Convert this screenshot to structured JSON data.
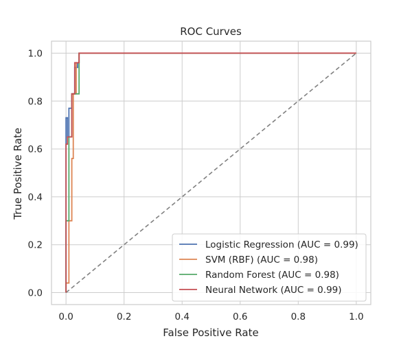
{
  "chart_data": {
    "type": "line",
    "title": "ROC Curves",
    "xlabel": "False Positive Rate",
    "ylabel": "True Positive Rate",
    "xlim": [
      -0.05,
      1.05
    ],
    "ylim": [
      -0.05,
      1.05
    ],
    "xticks": [
      0.0,
      0.2,
      0.4,
      0.6,
      0.8,
      1.0
    ],
    "yticks": [
      0.0,
      0.2,
      0.4,
      0.6,
      0.8,
      1.0
    ],
    "xtick_labels": [
      "0.0",
      "0.2",
      "0.4",
      "0.6",
      "0.8",
      "1.0"
    ],
    "ytick_labels": [
      "0.0",
      "0.2",
      "0.4",
      "0.6",
      "0.8",
      "1.0"
    ],
    "grid": true,
    "legend_position": "lower-right",
    "series": [
      {
        "name": "Logistic Regression (AUC = 0.99)",
        "color": "#4c72b0",
        "x": [
          0,
          0,
          0.005,
          0.005,
          0.01,
          0.01,
          0.02,
          0.02,
          0.03,
          0.03,
          0.04,
          0.04,
          0.045,
          0.045,
          1.0
        ],
        "y": [
          0,
          0.73,
          0.73,
          0.65,
          0.65,
          0.77,
          0.77,
          0.83,
          0.83,
          0.94,
          0.94,
          0.96,
          0.96,
          1.0,
          1.0
        ]
      },
      {
        "name": "SVM (RBF) (AUC = 0.98)",
        "color": "#dd8452",
        "x": [
          0,
          0,
          0.01,
          0.01,
          0.02,
          0.02,
          0.025,
          0.025,
          0.03,
          0.03,
          0.035,
          0.035,
          0.045,
          0.045,
          1.0
        ],
        "y": [
          0,
          0.04,
          0.04,
          0.3,
          0.3,
          0.56,
          0.56,
          0.83,
          0.83,
          0.83,
          0.83,
          0.96,
          0.96,
          1.0,
          1.0
        ]
      },
      {
        "name": "Random Forest (AUC = 0.98)",
        "color": "#55a868",
        "x": [
          0,
          0,
          0.01,
          0.01,
          0.02,
          0.02,
          0.035,
          0.035,
          0.045,
          0.045,
          1.0
        ],
        "y": [
          0,
          0.3,
          0.3,
          0.65,
          0.65,
          0.83,
          0.83,
          0.83,
          0.83,
          1.0,
          1.0
        ]
      },
      {
        "name": "Neural Network (AUC = 0.99)",
        "color": "#c44e52",
        "x": [
          0,
          0,
          0.005,
          0.005,
          0.015,
          0.015,
          0.02,
          0.02,
          0.03,
          0.03,
          0.035,
          0.035,
          0.045,
          0.045,
          1.0
        ],
        "y": [
          0,
          0.62,
          0.62,
          0.65,
          0.65,
          0.65,
          0.65,
          0.83,
          0.83,
          0.96,
          0.96,
          0.96,
          0.96,
          1.0,
          1.0
        ]
      },
      {
        "color": "#808080",
        "dashed": true,
        "x": [
          0,
          1
        ],
        "y": [
          0,
          1
        ]
      }
    ]
  }
}
